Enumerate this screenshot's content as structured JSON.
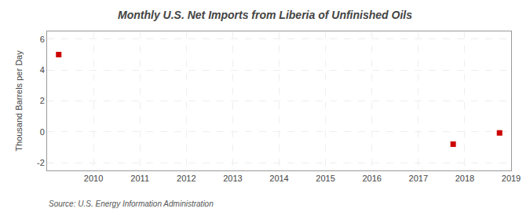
{
  "chart_data": {
    "type": "scatter",
    "title": "Monthly U.S. Net Imports from Liberia of Unfinished Oils",
    "ylabel": "Thousand Barrels per Day",
    "x": [
      2009.25,
      2017.75,
      2018.75
    ],
    "values": [
      5.0,
      -0.8,
      -0.07
    ],
    "color": "#cc0000",
    "marker": "square",
    "xlim": [
      2009,
      2019
    ],
    "xticks": [
      2010,
      2011,
      2012,
      2013,
      2014,
      2015,
      2016,
      2017,
      2018,
      2019
    ],
    "ylim": [
      -2.5,
      6.5
    ],
    "yticks": [
      -2,
      0,
      2,
      4,
      6
    ],
    "grid": true,
    "annotations": [
      "Source: U.S. Energy Information Administration"
    ]
  }
}
